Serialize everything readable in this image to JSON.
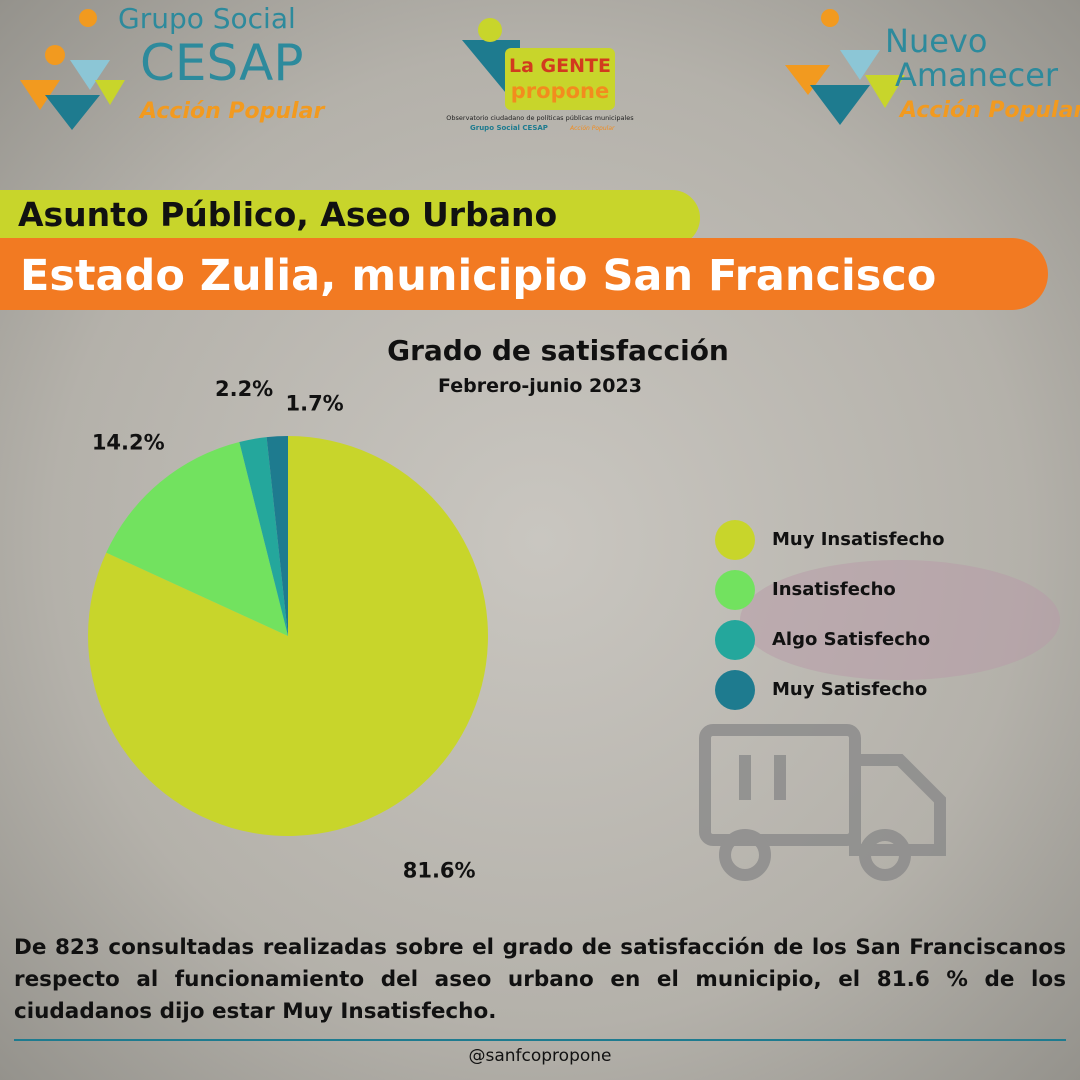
{
  "logos": {
    "left": {
      "line1": "Grupo Social",
      "line2": "CESAP",
      "line3": "Acción Popular"
    },
    "center": {
      "line1": "La GENTE",
      "line2": "propone",
      "line3": "Observatorio ciudadano de políticas públicas municipales",
      "line4": "Grupo Social CESAP",
      "line5": "Acción Popular"
    },
    "right": {
      "line1": "Nuevo",
      "line2": "Amanecer",
      "line3": "Acción Popular"
    }
  },
  "header": {
    "subtitle": "Asunto Público, Aseo Urbano",
    "title": "Estado Zulia, municipio San Francisco"
  },
  "chart_data": {
    "type": "pie",
    "title": "Grado de satisfacción",
    "subtitle": "Febrero-junio 2023",
    "categories": [
      "Muy Insatisfecho",
      "Insatisfecho",
      "Algo Satisfecho",
      "Muy Satisfecho"
    ],
    "values": [
      81.6,
      14.2,
      2.2,
      1.7
    ],
    "value_labels": [
      "81.6%",
      "14.2%",
      "2.2%",
      "1.7%"
    ],
    "colors": [
      "#c8d52b",
      "#72e25f",
      "#24a79c",
      "#1e7b8f"
    ],
    "legend": "right"
  },
  "summary": "De 823 consultadas realizadas sobre el grado de satisfacción de los San Franciscanos respecto al funcionamiento del aseo  urbano en el municipio, el 81.6 % de los ciudadanos dijo estar Muy Insatisfecho.",
  "handle": "@sanfcopropone"
}
